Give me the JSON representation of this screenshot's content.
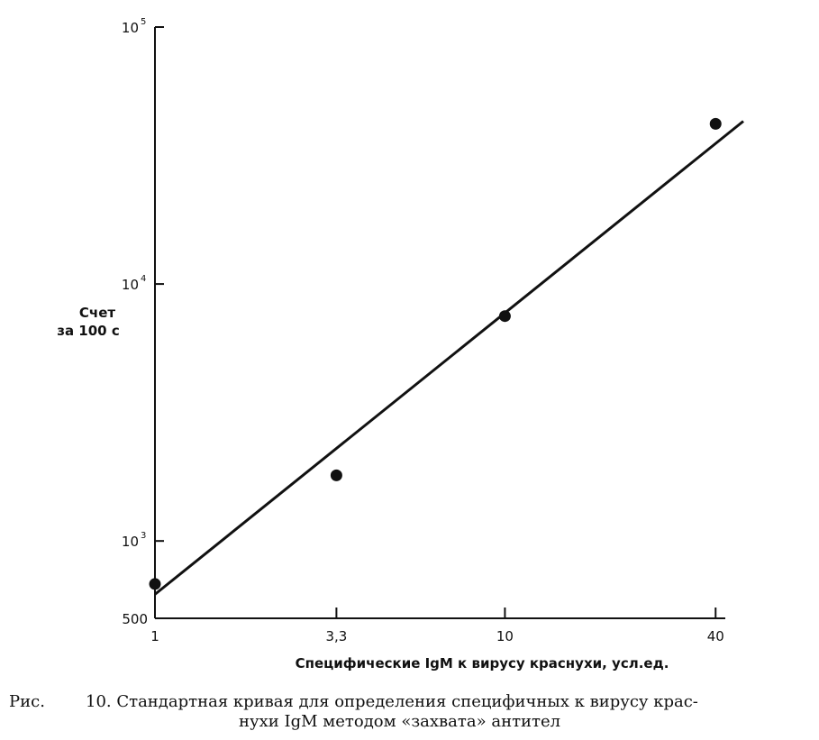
{
  "chart_data": {
    "type": "scatter",
    "xlabel": "Специфические IgM к вирусу краснухи, усл.ед.",
    "ylabel_line1": "Счет",
    "ylabel_line2": "за 100 с",
    "x_scale": "log",
    "y_scale": "log",
    "xlim": [
      1,
      48
    ],
    "ylim": [
      500,
      100000
    ],
    "x_ticks": [
      {
        "value": 1,
        "label": "1"
      },
      {
        "value": 3.3,
        "label": "3,3"
      },
      {
        "value": 10,
        "label": "10"
      },
      {
        "value": 40,
        "label": "40"
      }
    ],
    "y_ticks": [
      {
        "value": 500,
        "base": "500",
        "exp": ""
      },
      {
        "value": 1000,
        "base": "10",
        "exp": "3"
      },
      {
        "value": 10000,
        "base": "10",
        "exp": "4"
      },
      {
        "value": 100000,
        "base": "10",
        "exp": "5"
      }
    ],
    "points": [
      {
        "x": 1,
        "y": 680
      },
      {
        "x": 3.3,
        "y": 1800
      },
      {
        "x": 10,
        "y": 7500
      },
      {
        "x": 40,
        "y": 42000
      }
    ],
    "fit_line": [
      {
        "x": 1,
        "y": 620
      },
      {
        "x": 48,
        "y": 43000
      }
    ],
    "grid": false
  },
  "caption": {
    "prefix": "Рис.",
    "line1": "10. Стандартная кривая для определения специфичных к вирусу крас-",
    "line2": "нухи IgM методом «захвата» антител"
  }
}
